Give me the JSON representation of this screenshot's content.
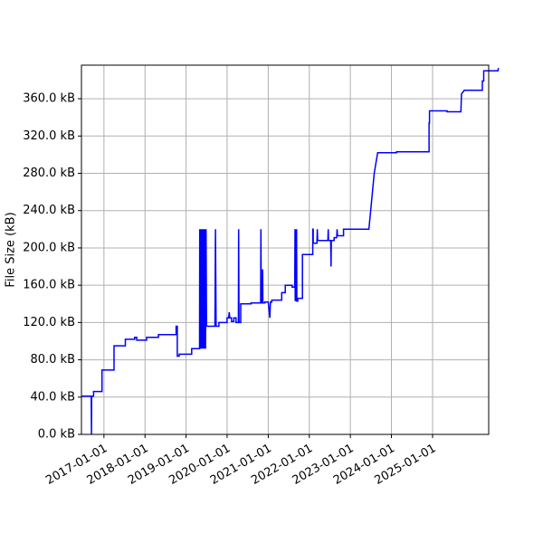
{
  "chart_data": {
    "type": "line",
    "title": "",
    "xlabel": "",
    "ylabel": "File Size (kB)",
    "ylim": [
      0,
      396
    ],
    "xlim": [
      "2016-06-15",
      "2026-05-15"
    ],
    "grid": true,
    "y_ticks": [
      {
        "value": 0,
        "label": "0.0 kB"
      },
      {
        "value": 40,
        "label": "40.0 kB"
      },
      {
        "value": 80,
        "label": "80.0 kB"
      },
      {
        "value": 120,
        "label": "120.0 kB"
      },
      {
        "value": 160,
        "label": "160.0 kB"
      },
      {
        "value": 200,
        "label": "200.0 kB"
      },
      {
        "value": 240,
        "label": "240.0 kB"
      },
      {
        "value": 280,
        "label": "280.0 kB"
      },
      {
        "value": 320,
        "label": "320.0 kB"
      },
      {
        "value": 360,
        "label": "360.0 kB"
      }
    ],
    "x_ticks": [
      {
        "value": "2017-01-01",
        "label": "2017-01-01"
      },
      {
        "value": "2018-01-01",
        "label": "2018-01-01"
      },
      {
        "value": "2019-01-01",
        "label": "2019-01-01"
      },
      {
        "value": "2020-01-01",
        "label": "2020-01-01"
      },
      {
        "value": "2021-01-01",
        "label": "2021-01-01"
      },
      {
        "value": "2022-01-01",
        "label": "2022-01-01"
      },
      {
        "value": "2023-01-01",
        "label": "2023-01-01"
      },
      {
        "value": "2024-01-01",
        "label": "2024-01-01"
      },
      {
        "value": "2025-01-01",
        "label": "2025-01-01"
      }
    ],
    "series": [
      {
        "color": "#0000ff",
        "points": [
          [
            "2016-06-15",
            41
          ],
          [
            "2016-09-10",
            41
          ],
          [
            "2016-09-12",
            0
          ],
          [
            "2016-09-14",
            41
          ],
          [
            "2016-10-01",
            41
          ],
          [
            "2016-10-01",
            46
          ],
          [
            "2016-12-15",
            46
          ],
          [
            "2016-12-15",
            69
          ],
          [
            "2017-04-01",
            69
          ],
          [
            "2017-04-01",
            95
          ],
          [
            "2017-07-10",
            95
          ],
          [
            "2017-07-10",
            102
          ],
          [
            "2017-10-01",
            102
          ],
          [
            "2017-10-01",
            104
          ],
          [
            "2017-10-20",
            104
          ],
          [
            "2017-10-20",
            101
          ],
          [
            "2018-01-15",
            101
          ],
          [
            "2018-01-15",
            104
          ],
          [
            "2018-05-01",
            104
          ],
          [
            "2018-05-01",
            107
          ],
          [
            "2018-10-05",
            107
          ],
          [
            "2018-10-05",
            116
          ],
          [
            "2018-10-15",
            116
          ],
          [
            "2018-10-15",
            84
          ],
          [
            "2018-11-01",
            84
          ],
          [
            "2018-11-01",
            86
          ],
          [
            "2019-02-20",
            86
          ],
          [
            "2019-02-20",
            92
          ],
          [
            "2019-05-01",
            92
          ],
          [
            "2019-05-03",
            220
          ],
          [
            "2019-05-06",
            92
          ],
          [
            "2019-05-10",
            220
          ],
          [
            "2019-05-13",
            92
          ],
          [
            "2019-05-18",
            220
          ],
          [
            "2019-05-21",
            92
          ],
          [
            "2019-05-26",
            220
          ],
          [
            "2019-05-29",
            92
          ],
          [
            "2019-06-03",
            220
          ],
          [
            "2019-06-06",
            92
          ],
          [
            "2019-06-12",
            220
          ],
          [
            "2019-06-15",
            92
          ],
          [
            "2019-06-20",
            220
          ],
          [
            "2019-06-23",
            92
          ],
          [
            "2019-06-28",
            220
          ],
          [
            "2019-07-02",
            116
          ],
          [
            "2019-09-15",
            116
          ],
          [
            "2019-09-20",
            220
          ],
          [
            "2019-09-25",
            116
          ],
          [
            "2019-10-20",
            116
          ],
          [
            "2019-10-20",
            120
          ],
          [
            "2020-01-01",
            120
          ],
          [
            "2020-01-01",
            125
          ],
          [
            "2020-01-15",
            125
          ],
          [
            "2020-01-20",
            131
          ],
          [
            "2020-01-25",
            125
          ],
          [
            "2020-02-10",
            125
          ],
          [
            "2020-02-10",
            121
          ],
          [
            "2020-03-01",
            121
          ],
          [
            "2020-03-01",
            125
          ],
          [
            "2020-03-20",
            125
          ],
          [
            "2020-03-20",
            120
          ],
          [
            "2020-04-10",
            120
          ],
          [
            "2020-04-13",
            220
          ],
          [
            "2020-04-16",
            120
          ],
          [
            "2020-05-01",
            120
          ],
          [
            "2020-05-01",
            140
          ],
          [
            "2020-08-01",
            140
          ],
          [
            "2020-08-01",
            141
          ],
          [
            "2020-10-25",
            141
          ],
          [
            "2020-10-28",
            220
          ],
          [
            "2020-10-31",
            141
          ],
          [
            "2020-11-10",
            141
          ],
          [
            "2020-11-12",
            177
          ],
          [
            "2020-11-14",
            141
          ],
          [
            "2020-12-01",
            141
          ],
          [
            "2020-12-01",
            142
          ],
          [
            "2021-01-01",
            142
          ],
          [
            "2021-01-15",
            125
          ],
          [
            "2021-01-20",
            142
          ],
          [
            "2021-02-01",
            142
          ],
          [
            "2021-02-01",
            144
          ],
          [
            "2021-05-01",
            144
          ],
          [
            "2021-05-01",
            152
          ],
          [
            "2021-06-01",
            152
          ],
          [
            "2021-06-01",
            160
          ],
          [
            "2021-08-01",
            160
          ],
          [
            "2021-08-01",
            158
          ],
          [
            "2021-08-25",
            158
          ],
          [
            "2021-08-27",
            220
          ],
          [
            "2021-08-29",
            143
          ],
          [
            "2021-09-03",
            220
          ],
          [
            "2021-09-05",
            143
          ],
          [
            "2021-09-10",
            220
          ],
          [
            "2021-09-12",
            143
          ],
          [
            "2021-09-20",
            143
          ],
          [
            "2021-09-20",
            146
          ],
          [
            "2021-11-01",
            146
          ],
          [
            "2021-11-01",
            193
          ],
          [
            "2022-02-01",
            193
          ],
          [
            "2022-02-01",
            220
          ],
          [
            "2022-02-05",
            220
          ],
          [
            "2022-02-05",
            205
          ],
          [
            "2022-03-10",
            205
          ],
          [
            "2022-03-13",
            220
          ],
          [
            "2022-03-16",
            208
          ],
          [
            "2022-06-15",
            208
          ],
          [
            "2022-06-18",
            220
          ],
          [
            "2022-06-21",
            208
          ],
          [
            "2022-07-10",
            208
          ],
          [
            "2022-07-13",
            180
          ],
          [
            "2022-07-16",
            208
          ],
          [
            "2022-08-10",
            208
          ],
          [
            "2022-08-10",
            211
          ],
          [
            "2022-09-01",
            211
          ],
          [
            "2022-09-05",
            220
          ],
          [
            "2022-09-08",
            213
          ],
          [
            "2022-11-01",
            213
          ],
          [
            "2022-11-01",
            220
          ],
          [
            "2023-06-15",
            220
          ],
          [
            "2023-07-01",
            240
          ],
          [
            "2023-08-01",
            280
          ],
          [
            "2023-09-01",
            302
          ],
          [
            "2024-02-15",
            302
          ],
          [
            "2024-02-15",
            303
          ],
          [
            "2024-12-01",
            303
          ],
          [
            "2024-12-01",
            334
          ],
          [
            "2024-12-05",
            334
          ],
          [
            "2024-12-05",
            347
          ],
          [
            "2025-05-10",
            347
          ],
          [
            "2025-05-10",
            346
          ],
          [
            "2025-09-10",
            346
          ],
          [
            "2025-09-15",
            365
          ],
          [
            "2025-10-10",
            369
          ],
          [
            "2026-03-20",
            369
          ],
          [
            "2026-03-20",
            379
          ],
          [
            "2026-04-01",
            379
          ],
          [
            "2026-04-01",
            390
          ],
          [
            "2026-08-05",
            390
          ],
          [
            "2026-08-10",
            393
          ]
        ]
      }
    ]
  }
}
